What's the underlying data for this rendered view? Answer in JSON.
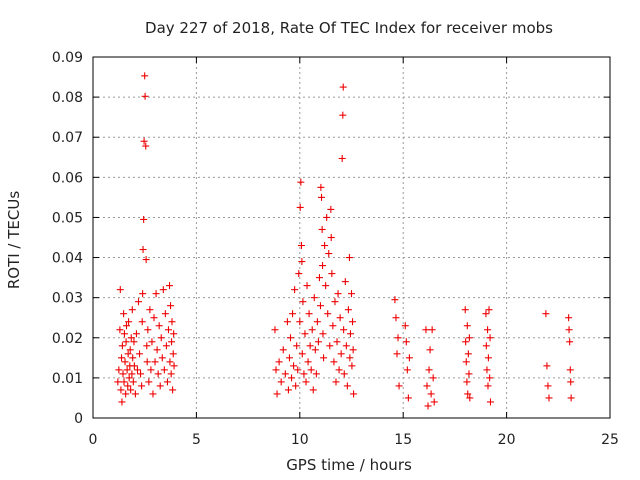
{
  "chart_data": {
    "type": "scatter",
    "title": "Day 227 of 2018, Rate Of TEC Index for receiver mobs",
    "xlabel": "GPS time / hours",
    "ylabel": "ROTI / TECUs",
    "xlim": [
      0,
      25
    ],
    "ylim": [
      0,
      0.09
    ],
    "grid": true,
    "x_ticks": [
      0,
      5,
      10,
      15,
      20,
      25
    ],
    "x_tick_labels": [
      "0",
      "5",
      "10",
      "15",
      "20",
      "25"
    ],
    "y_ticks": [
      0,
      0.01,
      0.02,
      0.03,
      0.04,
      0.05,
      0.06,
      0.07,
      0.08,
      0.09
    ],
    "y_tick_labels": [
      "0",
      "0.01",
      "0.02",
      "0.03",
      "0.04",
      "0.05",
      "0.06",
      "0.07",
      "0.08",
      "0.09"
    ],
    "marker": "+",
    "color": "#ee0000",
    "series": [
      {
        "name": "ROTI",
        "points": [
          [
            1.2,
            0.009
          ],
          [
            1.25,
            0.012
          ],
          [
            1.3,
            0.022
          ],
          [
            1.32,
            0.032
          ],
          [
            1.35,
            0.007
          ],
          [
            1.38,
            0.015
          ],
          [
            1.4,
            0.004
          ],
          [
            1.42,
            0.018
          ],
          [
            1.45,
            0.011
          ],
          [
            1.48,
            0.026
          ],
          [
            1.5,
            0.009
          ],
          [
            1.52,
            0.021
          ],
          [
            1.55,
            0.014
          ],
          [
            1.58,
            0.006
          ],
          [
            1.6,
            0.019
          ],
          [
            1.62,
            0.023
          ],
          [
            1.65,
            0.012
          ],
          [
            1.68,
            0.008
          ],
          [
            1.7,
            0.016
          ],
          [
            1.72,
            0.024
          ],
          [
            1.75,
            0.01
          ],
          [
            1.78,
            0.013
          ],
          [
            1.8,
            0.017
          ],
          [
            1.82,
            0.007
          ],
          [
            1.85,
            0.02
          ],
          [
            1.88,
            0.011
          ],
          [
            1.9,
            0.027
          ],
          [
            1.92,
            0.015
          ],
          [
            1.95,
            0.009
          ],
          [
            1.98,
            0.019
          ],
          [
            2.0,
            0.013
          ],
          [
            2.05,
            0.006
          ],
          [
            2.1,
            0.021
          ],
          [
            2.15,
            0.012
          ],
          [
            2.2,
            0.029
          ],
          [
            2.25,
            0.016
          ],
          [
            2.3,
            0.011
          ],
          [
            2.35,
            0.008
          ],
          [
            2.38,
            0.024
          ],
          [
            2.4,
            0.031
          ],
          [
            2.42,
            0.042
          ],
          [
            2.45,
            0.0495
          ],
          [
            2.47,
            0.069
          ],
          [
            2.5,
            0.0853
          ],
          [
            2.52,
            0.0802
          ],
          [
            2.55,
            0.0678
          ],
          [
            2.57,
            0.0395
          ],
          [
            2.6,
            0.018
          ],
          [
            2.62,
            0.014
          ],
          [
            2.65,
            0.022
          ],
          [
            2.7,
            0.009
          ],
          [
            2.75,
            0.027
          ],
          [
            2.8,
            0.012
          ],
          [
            2.85,
            0.019
          ],
          [
            2.9,
            0.006
          ],
          [
            2.95,
            0.025
          ],
          [
            3.0,
            0.014
          ],
          [
            3.05,
            0.031
          ],
          [
            3.1,
            0.017
          ],
          [
            3.15,
            0.011
          ],
          [
            3.2,
            0.023
          ],
          [
            3.25,
            0.008
          ],
          [
            3.3,
            0.02
          ],
          [
            3.35,
            0.015
          ],
          [
            3.4,
            0.032
          ],
          [
            3.45,
            0.012
          ],
          [
            3.5,
            0.026
          ],
          [
            3.55,
            0.018
          ],
          [
            3.6,
            0.009
          ],
          [
            3.65,
            0.022
          ],
          [
            3.7,
            0.033
          ],
          [
            3.72,
            0.014
          ],
          [
            3.75,
            0.028
          ],
          [
            3.78,
            0.011
          ],
          [
            3.8,
            0.019
          ],
          [
            3.82,
            0.024
          ],
          [
            3.85,
            0.007
          ],
          [
            3.88,
            0.016
          ],
          [
            3.9,
            0.021
          ],
          [
            3.92,
            0.013
          ],
          [
            8.8,
            0.022
          ],
          [
            8.85,
            0.012
          ],
          [
            8.9,
            0.006
          ],
          [
            9.0,
            0.014
          ],
          [
            9.1,
            0.009
          ],
          [
            9.2,
            0.017
          ],
          [
            9.3,
            0.011
          ],
          [
            9.4,
            0.024
          ],
          [
            9.45,
            0.007
          ],
          [
            9.5,
            0.015
          ],
          [
            9.55,
            0.02
          ],
          [
            9.6,
            0.01
          ],
          [
            9.65,
            0.026
          ],
          [
            9.7,
            0.013
          ],
          [
            9.75,
            0.032
          ],
          [
            9.8,
            0.008
          ],
          [
            9.85,
            0.018
          ],
          [
            9.9,
            0.012
          ],
          [
            9.95,
            0.036
          ],
          [
            10.0,
            0.024
          ],
          [
            10.02,
            0.0525
          ],
          [
            10.05,
            0.0588
          ],
          [
            10.08,
            0.043
          ],
          [
            10.1,
            0.039
          ],
          [
            10.12,
            0.016
          ],
          [
            10.15,
            0.029
          ],
          [
            10.2,
            0.011
          ],
          [
            10.25,
            0.021
          ],
          [
            10.3,
            0.009
          ],
          [
            10.35,
            0.033
          ],
          [
            10.4,
            0.014
          ],
          [
            10.45,
            0.026
          ],
          [
            10.5,
            0.018
          ],
          [
            10.55,
            0.012
          ],
          [
            10.6,
            0.022
          ],
          [
            10.65,
            0.007
          ],
          [
            10.7,
            0.03
          ],
          [
            10.75,
            0.017
          ],
          [
            10.8,
            0.011
          ],
          [
            10.85,
            0.024
          ],
          [
            10.9,
            0.019
          ],
          [
            10.95,
            0.035
          ],
          [
            11.0,
            0.028
          ],
          [
            11.02,
            0.0575
          ],
          [
            11.05,
            0.055
          ],
          [
            11.08,
            0.047
          ],
          [
            11.1,
            0.038
          ],
          [
            11.12,
            0.021
          ],
          [
            11.15,
            0.015
          ],
          [
            11.2,
            0.043
          ],
          [
            11.25,
            0.033
          ],
          [
            11.3,
            0.05
          ],
          [
            11.35,
            0.026
          ],
          [
            11.4,
            0.041
          ],
          [
            11.45,
            0.018
          ],
          [
            11.5,
            0.052
          ],
          [
            11.52,
            0.045
          ],
          [
            11.55,
            0.036
          ],
          [
            11.6,
            0.023
          ],
          [
            11.65,
            0.014
          ],
          [
            11.7,
            0.029
          ],
          [
            11.75,
            0.009
          ],
          [
            11.8,
            0.019
          ],
          [
            11.85,
            0.031
          ],
          [
            11.9,
            0.012
          ],
          [
            11.95,
            0.025
          ],
          [
            12.0,
            0.016
          ],
          [
            12.05,
            0.0647
          ],
          [
            12.08,
            0.0755
          ],
          [
            12.1,
            0.0825
          ],
          [
            12.12,
            0.022
          ],
          [
            12.15,
            0.011
          ],
          [
            12.2,
            0.034
          ],
          [
            12.25,
            0.018
          ],
          [
            12.3,
            0.008
          ],
          [
            12.35,
            0.027
          ],
          [
            12.4,
            0.04
          ],
          [
            12.42,
            0.015
          ],
          [
            12.45,
            0.021
          ],
          [
            12.5,
            0.031
          ],
          [
            12.52,
            0.013
          ],
          [
            12.55,
            0.024
          ],
          [
            12.58,
            0.017
          ],
          [
            12.6,
            0.006
          ],
          [
            14.6,
            0.0295
          ],
          [
            14.65,
            0.025
          ],
          [
            14.7,
            0.016
          ],
          [
            14.75,
            0.02
          ],
          [
            14.8,
            0.008
          ],
          [
            15.1,
            0.023
          ],
          [
            15.15,
            0.019
          ],
          [
            15.2,
            0.012
          ],
          [
            15.25,
            0.005
          ],
          [
            15.3,
            0.015
          ],
          [
            16.1,
            0.022
          ],
          [
            16.15,
            0.008
          ],
          [
            16.2,
            0.003
          ],
          [
            16.25,
            0.012
          ],
          [
            16.3,
            0.017
          ],
          [
            16.35,
            0.006
          ],
          [
            16.4,
            0.022
          ],
          [
            16.45,
            0.01
          ],
          [
            16.5,
            0.004
          ],
          [
            18.0,
            0.027
          ],
          [
            18.02,
            0.019
          ],
          [
            18.05,
            0.014
          ],
          [
            18.08,
            0.009
          ],
          [
            18.1,
            0.023
          ],
          [
            18.12,
            0.006
          ],
          [
            18.15,
            0.016
          ],
          [
            18.18,
            0.011
          ],
          [
            18.2,
            0.02
          ],
          [
            18.22,
            0.005
          ],
          [
            19.0,
            0.026
          ],
          [
            19.02,
            0.018
          ],
          [
            19.05,
            0.012
          ],
          [
            19.08,
            0.022
          ],
          [
            19.1,
            0.008
          ],
          [
            19.12,
            0.015
          ],
          [
            19.15,
            0.027
          ],
          [
            19.18,
            0.01
          ],
          [
            19.2,
            0.02
          ],
          [
            19.22,
            0.004
          ],
          [
            21.9,
            0.026
          ],
          [
            21.95,
            0.013
          ],
          [
            22.0,
            0.008
          ],
          [
            22.05,
            0.005
          ],
          [
            23.0,
            0.025
          ],
          [
            23.02,
            0.022
          ],
          [
            23.05,
            0.019
          ],
          [
            23.08,
            0.012
          ],
          [
            23.1,
            0.009
          ],
          [
            23.12,
            0.005
          ]
        ]
      }
    ]
  }
}
